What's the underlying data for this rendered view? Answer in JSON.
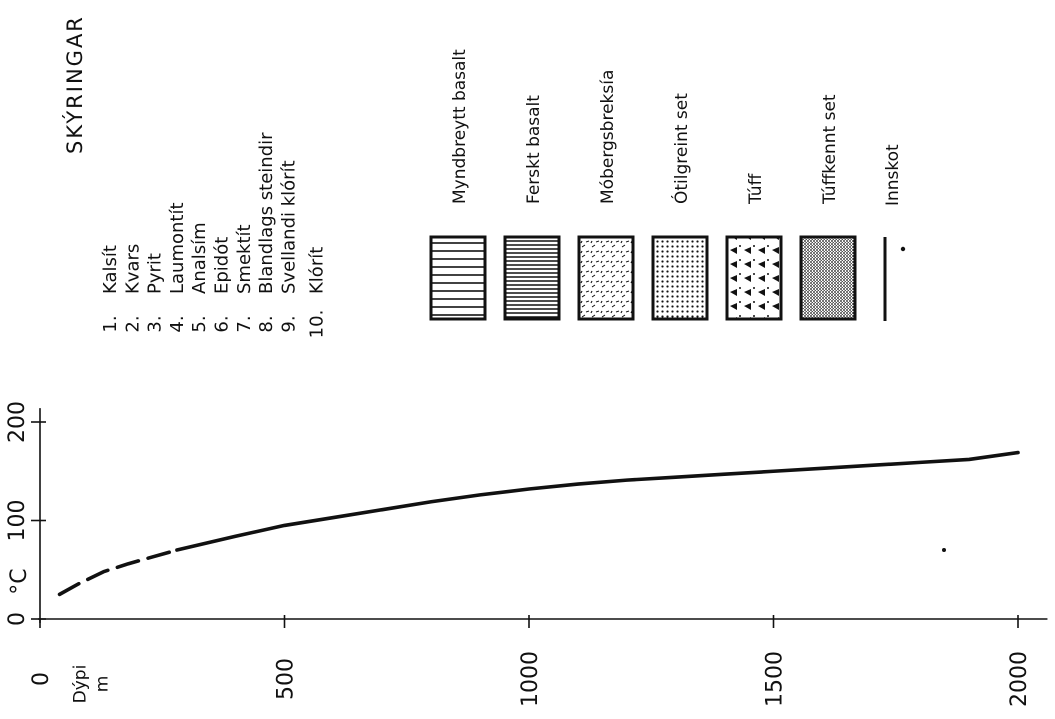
{
  "legend": {
    "title": "SKÝRINGAR",
    "minerals": [
      {
        "num": "1.",
        "name": "Kalsít"
      },
      {
        "num": "2.",
        "name": "Kvars"
      },
      {
        "num": "3.",
        "name": "Pyrit"
      },
      {
        "num": "4.",
        "name": "Laumontít"
      },
      {
        "num": "5.",
        "name": "Analsím"
      },
      {
        "num": "6.",
        "name": "Epidót"
      },
      {
        "num": "7.",
        "name": "Smektít"
      },
      {
        "num": "8.",
        "name": "Blandlags steindir"
      },
      {
        "num": "9.",
        "name": "Svellandi klórít"
      },
      {
        "num": "10.",
        "name": "Klórít"
      }
    ],
    "rocks": [
      {
        "name": "Myndbreytt basalt",
        "pattern": "vertical-bars-wide"
      },
      {
        "name": "Ferskt basalt",
        "pattern": "vertical-lines-dense"
      },
      {
        "name": "Móbergsbreksía",
        "pattern": "dashes"
      },
      {
        "name": "Ótilgreint set",
        "pattern": "dots"
      },
      {
        "name": "Túff",
        "pattern": "triangles"
      },
      {
        "name": "Túffkennt set",
        "pattern": "stipple"
      }
    ],
    "inflow": {
      "name": "Innskot",
      "symbol": "line-with-dot"
    }
  },
  "chart_data": {
    "type": "line",
    "orientation": "rotated-90",
    "xlabel": "Dýpi m",
    "ylabel": "°C",
    "x_ticks": [
      "0",
      "500",
      "1000",
      "1500",
      "2000"
    ],
    "y_ticks": [
      "0",
      "100",
      "200"
    ],
    "xlim": [
      0,
      2050
    ],
    "ylim": [
      0,
      210
    ],
    "series": [
      {
        "style": "dashed",
        "x": [
          40,
          80,
          130,
          180,
          230,
          280
        ],
        "y": [
          25,
          36,
          48,
          56,
          63,
          70
        ]
      },
      {
        "style": "solid",
        "x": [
          280,
          400,
          500,
          600,
          700,
          800,
          900,
          1000,
          1100,
          1200,
          1300,
          1400,
          1500,
          1600,
          1700,
          1800,
          1900,
          2000
        ],
        "y": [
          70,
          84,
          95,
          103,
          111,
          119,
          126,
          132,
          137,
          141,
          144,
          147,
          150,
          153,
          156,
          159,
          162,
          169
        ]
      }
    ],
    "grid": false
  },
  "colors": {
    "ink": "#111111",
    "background": "#ffffff"
  }
}
